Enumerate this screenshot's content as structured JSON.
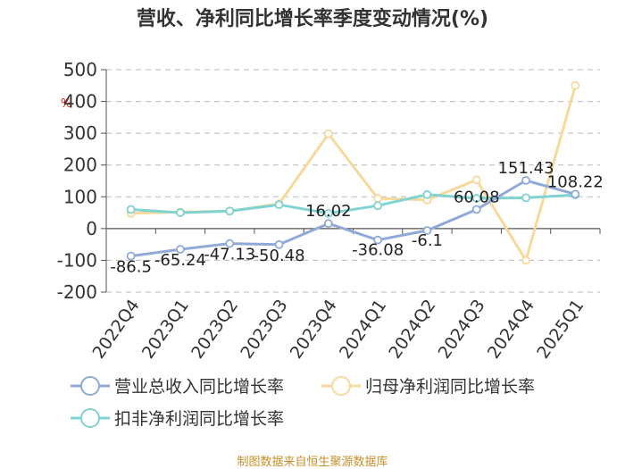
{
  "chart_data": {
    "type": "line",
    "title": "营收、净利同比增长率季度变动情况(%)",
    "ylabel": "%",
    "ylim": [
      -200,
      500
    ],
    "yticks": [
      500,
      400,
      300,
      200,
      100,
      0,
      -100,
      -200
    ],
    "categories": [
      "2022Q4",
      "2023Q1",
      "2023Q2",
      "2023Q3",
      "2023Q4",
      "2024Q1",
      "2024Q2",
      "2024Q3",
      "2024Q4",
      "2025Q1"
    ],
    "grid": true,
    "legend_position": "bottom",
    "series": [
      {
        "name": "营业总收入同比增长率",
        "color": "#8fa9d9",
        "values": [
          -86.5,
          -65.24,
          -47.13,
          -50.48,
          16.02,
          -36.08,
          -6.1,
          60.08,
          151.43,
          108.22
        ],
        "labels": [
          "-86.5",
          "-65.24",
          "-47.13",
          "-50.48",
          "16.02",
          "-36.08",
          "-6.1",
          "60.08",
          "151.43",
          "108.22"
        ]
      },
      {
        "name": "归母净利润同比增长率",
        "color": "#f7d99b",
        "values": [
          48,
          52,
          55,
          78,
          298,
          95,
          90,
          153,
          -100,
          450
        ]
      },
      {
        "name": "扣非净利润同比增长率",
        "color": "#7fd3d0",
        "values": [
          60,
          50,
          55,
          75,
          48,
          72,
          107,
          95,
          97,
          106
        ]
      }
    ],
    "footer": "制图数据来自恒生聚源数据库"
  }
}
